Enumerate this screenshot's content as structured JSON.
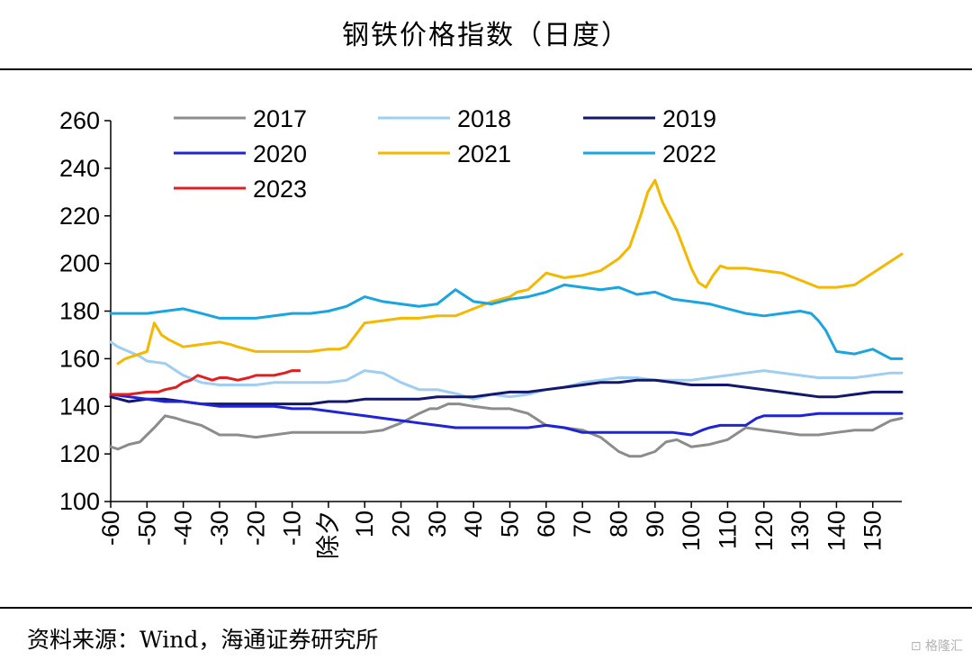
{
  "title": "钢铁价格指数（日度）",
  "source": "资料来源：Wind，海通证券研究所",
  "watermark": "格隆汇",
  "chart_data": {
    "type": "line",
    "title": "钢铁价格指数（日度）",
    "xlabel": "",
    "ylabel": "",
    "xlim": [
      -60,
      158
    ],
    "ylim": [
      100,
      260
    ],
    "y_ticks": [
      100,
      120,
      140,
      160,
      180,
      200,
      220,
      240,
      260
    ],
    "x_ticks": [
      -60,
      -50,
      -40,
      -30,
      -20,
      -10,
      0,
      10,
      20,
      30,
      40,
      50,
      60,
      70,
      80,
      90,
      100,
      110,
      120,
      130,
      140,
      150
    ],
    "x_tick_labels": [
      "-60",
      "-50",
      "-40",
      "-30",
      "-20",
      "-10",
      "除夕",
      "10",
      "20",
      "30",
      "40",
      "50",
      "60",
      "70",
      "80",
      "90",
      "100",
      "110",
      "120",
      "130",
      "140",
      "150"
    ],
    "grid": false,
    "legend_position": "top-left",
    "series": [
      {
        "name": "2017",
        "color": "#8c8c8c",
        "x": [
          -60,
          -58,
          -55,
          -52,
          -50,
          -48,
          -45,
          -42,
          -40,
          -35,
          -30,
          -25,
          -20,
          -15,
          -10,
          -5,
          0,
          5,
          10,
          15,
          20,
          25,
          28,
          30,
          33,
          36,
          40,
          45,
          50,
          55,
          60,
          65,
          70,
          75,
          80,
          83,
          86,
          90,
          93,
          96,
          100,
          105,
          110,
          115,
          120,
          125,
          130,
          135,
          140,
          145,
          150,
          155,
          158
        ],
        "y": [
          123,
          122,
          124,
          125,
          128,
          131,
          136,
          135,
          134,
          132,
          128,
          128,
          127,
          128,
          129,
          129,
          129,
          129,
          129,
          130,
          133,
          137,
          139,
          139,
          141,
          141,
          140,
          139,
          139,
          137,
          132,
          131,
          130,
          127,
          121,
          119,
          119,
          121,
          125,
          126,
          123,
          124,
          126,
          131,
          130,
          129,
          128,
          128,
          129,
          130,
          130,
          134,
          135
        ]
      },
      {
        "name": "2018",
        "color": "#9fcef2",
        "x": [
          -60,
          -58,
          -55,
          -52,
          -50,
          -45,
          -40,
          -35,
          -30,
          -25,
          -20,
          -15,
          -10,
          -5,
          0,
          5,
          10,
          15,
          20,
          25,
          30,
          33,
          36,
          40,
          45,
          50,
          55,
          60,
          65,
          70,
          75,
          80,
          85,
          90,
          95,
          100,
          105,
          110,
          115,
          120,
          125,
          130,
          135,
          140,
          145,
          150,
          155,
          158
        ],
        "y": [
          167,
          165,
          163,
          161,
          159,
          158,
          153,
          150,
          149,
          149,
          149,
          150,
          150,
          150,
          150,
          151,
          155,
          154,
          150,
          147,
          147,
          146,
          145,
          143,
          145,
          144,
          145,
          147,
          148,
          150,
          151,
          152,
          152,
          151,
          151,
          151,
          152,
          153,
          154,
          155,
          154,
          153,
          152,
          152,
          152,
          153,
          154,
          154
        ]
      },
      {
        "name": "2019",
        "color": "#13176e",
        "x": [
          -60,
          -55,
          -50,
          -45,
          -40,
          -35,
          -30,
          -25,
          -20,
          -15,
          -10,
          -5,
          0,
          5,
          10,
          15,
          20,
          25,
          30,
          35,
          40,
          45,
          50,
          55,
          60,
          65,
          70,
          75,
          80,
          85,
          90,
          95,
          100,
          105,
          110,
          115,
          120,
          125,
          130,
          135,
          140,
          145,
          150,
          155,
          158
        ],
        "y": [
          144,
          142,
          143,
          143,
          142,
          141,
          141,
          141,
          141,
          141,
          141,
          141,
          142,
          142,
          143,
          143,
          143,
          143,
          144,
          144,
          144,
          145,
          146,
          146,
          147,
          148,
          149,
          150,
          150,
          151,
          151,
          150,
          149,
          149,
          149,
          148,
          147,
          146,
          145,
          144,
          144,
          145,
          146,
          146,
          146
        ]
      },
      {
        "name": "2020",
        "color": "#1f24d6",
        "x": [
          -60,
          -55,
          -50,
          -45,
          -40,
          -35,
          -30,
          -25,
          -20,
          -15,
          -10,
          -5,
          0,
          5,
          10,
          15,
          20,
          25,
          30,
          35,
          40,
          45,
          50,
          55,
          60,
          65,
          70,
          75,
          80,
          85,
          90,
          95,
          100,
          103,
          105,
          108,
          110,
          115,
          118,
          120,
          125,
          130,
          135,
          140,
          145,
          150,
          155,
          158
        ],
        "y": [
          145,
          144,
          143,
          142,
          142,
          141,
          140,
          140,
          140,
          140,
          139,
          139,
          138,
          137,
          136,
          135,
          134,
          133,
          132,
          131,
          131,
          131,
          131,
          131,
          132,
          131,
          129,
          129,
          129,
          129,
          129,
          129,
          128,
          130,
          131,
          132,
          132,
          132,
          135,
          136,
          136,
          136,
          137,
          137,
          137,
          137,
          137,
          137
        ]
      },
      {
        "name": "2021",
        "color": "#f5b800",
        "x": [
          -58,
          -56,
          -54,
          -52,
          -50,
          -48,
          -46,
          -44,
          -40,
          -35,
          -30,
          -27,
          -25,
          -20,
          -15,
          -10,
          -5,
          0,
          3,
          5,
          8,
          10,
          15,
          20,
          25,
          30,
          35,
          40,
          45,
          50,
          52,
          55,
          60,
          65,
          70,
          75,
          80,
          83,
          86,
          88,
          90,
          92,
          94,
          96,
          98,
          100,
          102,
          104,
          106,
          108,
          110,
          115,
          120,
          125,
          130,
          135,
          140,
          145,
          150,
          155,
          158
        ],
        "y": [
          158,
          160,
          161,
          162,
          163,
          175,
          170,
          168,
          165,
          166,
          167,
          166,
          165,
          163,
          163,
          163,
          163,
          164,
          164,
          165,
          171,
          175,
          176,
          177,
          177,
          178,
          178,
          181,
          184,
          186,
          188,
          189,
          196,
          194,
          195,
          197,
          202,
          207,
          220,
          230,
          235,
          226,
          220,
          214,
          206,
          198,
          192,
          190,
          195,
          199,
          198,
          198,
          197,
          196,
          193,
          190,
          190,
          191,
          196,
          201,
          204
        ]
      },
      {
        "name": "2022",
        "color": "#1aa5e0",
        "x": [
          -60,
          -55,
          -50,
          -45,
          -40,
          -35,
          -30,
          -25,
          -20,
          -15,
          -10,
          -5,
          0,
          5,
          10,
          15,
          20,
          25,
          30,
          35,
          40,
          45,
          50,
          55,
          60,
          65,
          70,
          75,
          80,
          85,
          90,
          95,
          100,
          105,
          110,
          115,
          120,
          125,
          130,
          133,
          135,
          137,
          140,
          145,
          150,
          155,
          158
        ],
        "y": [
          179,
          179,
          179,
          180,
          181,
          179,
          177,
          177,
          177,
          178,
          179,
          179,
          180,
          182,
          186,
          184,
          183,
          182,
          183,
          189,
          184,
          183,
          185,
          186,
          188,
          191,
          190,
          189,
          190,
          187,
          188,
          185,
          184,
          183,
          181,
          179,
          178,
          179,
          180,
          179,
          176,
          172,
          163,
          162,
          164,
          160,
          160
        ]
      },
      {
        "name": "2023",
        "color": "#e02020",
        "x": [
          -60,
          -55,
          -50,
          -47,
          -45,
          -42,
          -40,
          -38,
          -36,
          -34,
          -32,
          -30,
          -28,
          -25,
          -22,
          -20,
          -17,
          -15,
          -12,
          -10,
          -8
        ],
        "y": [
          145,
          145,
          146,
          146,
          147,
          148,
          150,
          151,
          153,
          152,
          151,
          152,
          152,
          151,
          152,
          153,
          153,
          153,
          154,
          155,
          155
        ]
      }
    ]
  }
}
